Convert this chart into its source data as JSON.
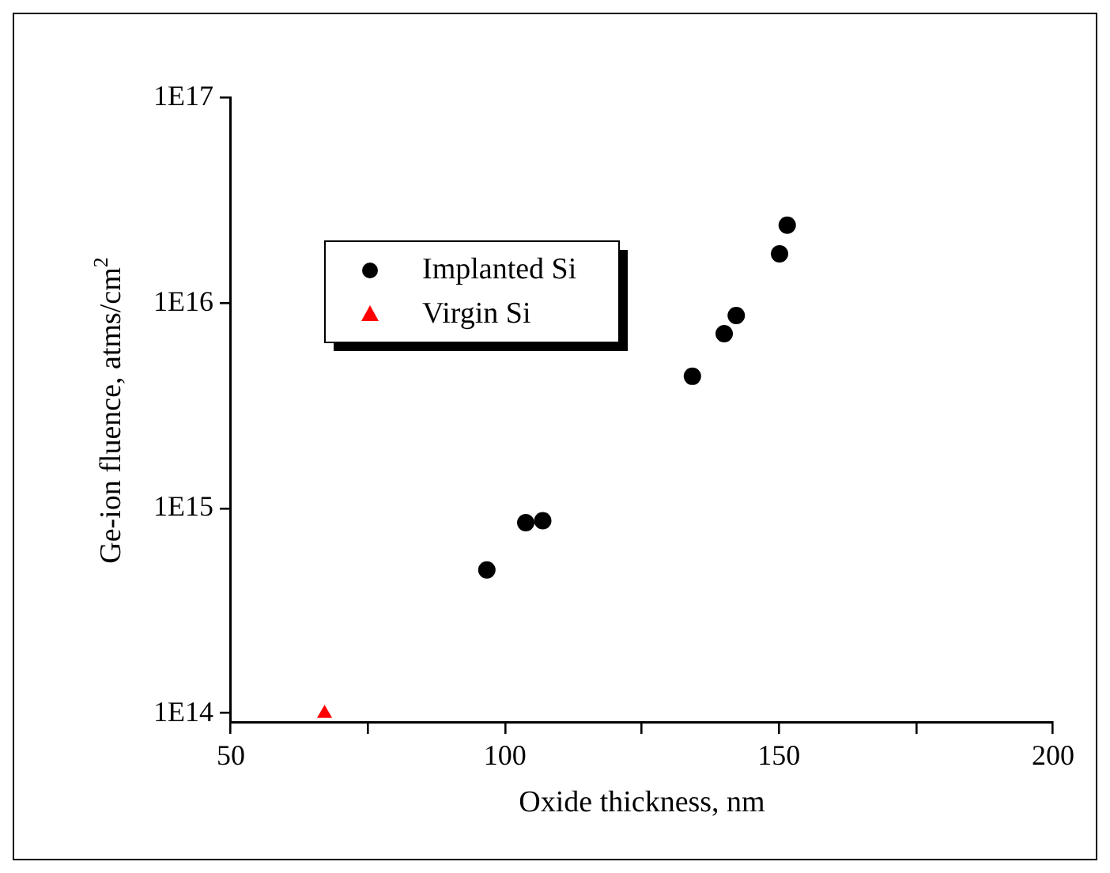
{
  "chart_data": {
    "type": "scatter",
    "xlabel": "Oxide thickness, nm",
    "ylabel": "Ge-ion fluence, atms/cm$^{2}$",
    "log": "y",
    "xlim": [
      50,
      200
    ],
    "xticks": [
      50,
      {
        "value": 75,
        "label": null
      },
      100,
      {
        "value": 125,
        "label": null
      },
      150,
      {
        "value": 175,
        "label": null
      },
      200
    ],
    "ylim": [
      90000000000000.0,
      1e+17
    ],
    "yticks": [
      {
        "value": 100000000000000.0,
        "label": "1E14"
      },
      {
        "value": 1000000000000000.0,
        "label": "1E15"
      },
      {
        "value": 1e+16,
        "label": "1E16"
      },
      {
        "value": 1e+17,
        "label": "1E17"
      }
    ],
    "grid": false,
    "legend": "top left",
    "series": [
      {
        "name": "Implanted Si",
        "color": "#000000",
        "marker": "circle",
        "x": [
          96.7,
          103.8,
          106.9,
          134.2,
          140.0,
          142.2,
          150.1,
          151.5
        ],
        "values": [
          500000000000000.0,
          850000000000000.0,
          870000000000000.0,
          4400000000000000.0,
          7100000000000000.0,
          8700000000000000.0,
          1.74e+16,
          2.4e+16
        ]
      },
      {
        "name": "Virgin Si",
        "color": "#ff0000",
        "marker": "triangle",
        "x": [
          67.1
        ],
        "values": [
          100000000000000.0
        ]
      }
    ]
  }
}
